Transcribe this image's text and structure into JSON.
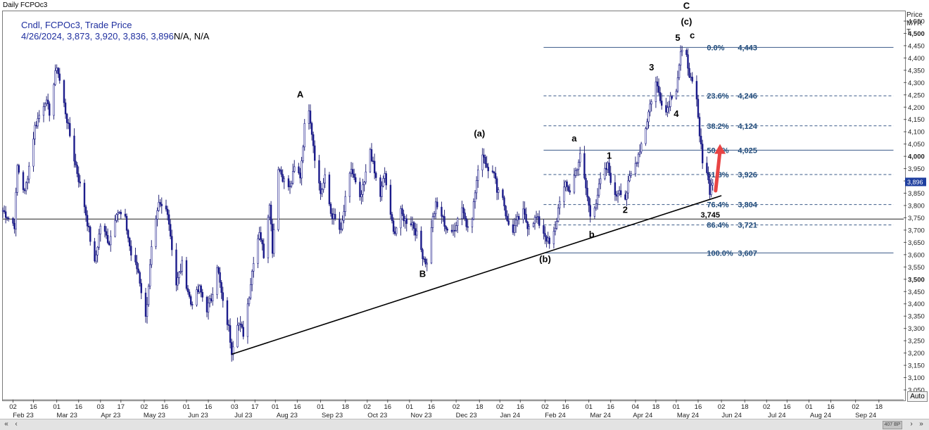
{
  "window": {
    "title": "Daily FCPOc3"
  },
  "info": {
    "line1": "Cndl, FCPOc3, Trade Price",
    "line2": "4/26/2024, 3,873, 3,920, 3,836, 3,896",
    "line2_suffix": "N/A, N/A"
  },
  "axis_header": {
    "line1": "Price",
    "line2": "MYR",
    "line3": "T"
  },
  "auto_label": "Auto",
  "scroll": {
    "left": "«",
    "prev": "‹",
    "next": "›",
    "right": "»",
    "thumb": "407 BP"
  },
  "chart_data": {
    "type": "candlestick",
    "symbol": "FCPOc3",
    "currency": "MYR",
    "ylim": [
      3010,
      4590
    ],
    "y_ticks": [
      3050,
      3100,
      3150,
      3200,
      3250,
      3300,
      3350,
      3400,
      3450,
      3500,
      3550,
      3600,
      3650,
      3700,
      3750,
      3800,
      3850,
      3900,
      3950,
      4000,
      4050,
      4100,
      4150,
      4200,
      4250,
      4300,
      4350,
      4400,
      4450,
      4500,
      4550
    ],
    "y_tick_labels": [
      "3,050",
      "3,100",
      "3,150",
      "3,200",
      "3,250",
      "3,300",
      "3,350",
      "3,400",
      "3,450",
      "3,500",
      "3,550",
      "3,600",
      "3,650",
      "3,700",
      "3,750",
      "3,800",
      "3,850",
      "3,900",
      "3,950",
      "4,000",
      "4,050",
      "4,100",
      "4,150",
      "4,200",
      "4,250",
      "4,300",
      "4,350",
      "4,400",
      "4,450",
      "4,500",
      "4,550"
    ],
    "y_bold": [
      "4,500",
      "4,000",
      "3,500"
    ],
    "current_price_label": "3,896",
    "current_price": 3896,
    "x_day_ticks": [
      {
        "d": "2023-01-02",
        "label": "02"
      },
      {
        "d": "2023-01-16",
        "label": "16"
      },
      {
        "d": "2023-02-01",
        "label": "01"
      },
      {
        "d": "2023-02-16",
        "label": "16"
      },
      {
        "d": "2023-03-03",
        "label": "03"
      },
      {
        "d": "2023-03-17",
        "label": "17"
      },
      {
        "d": "2023-04-02",
        "label": "02"
      },
      {
        "d": "2023-04-16",
        "label": "16"
      },
      {
        "d": "2023-05-01",
        "label": "01"
      },
      {
        "d": "2023-05-16",
        "label": "16"
      },
      {
        "d": "2023-06-03",
        "label": "03"
      },
      {
        "d": "2023-06-17",
        "label": "17"
      },
      {
        "d": "2023-07-01",
        "label": "01"
      },
      {
        "d": "2023-07-16",
        "label": "16"
      },
      {
        "d": "2023-08-01",
        "label": "01"
      },
      {
        "d": "2023-08-18",
        "label": "18"
      },
      {
        "d": "2023-09-02",
        "label": "02"
      },
      {
        "d": "2023-09-16",
        "label": "16"
      },
      {
        "d": "2023-10-01",
        "label": "01"
      },
      {
        "d": "2023-10-16",
        "label": "16"
      },
      {
        "d": "2023-11-02",
        "label": "02"
      },
      {
        "d": "2023-11-18",
        "label": "18"
      },
      {
        "d": "2023-12-02",
        "label": "02"
      },
      {
        "d": "2023-12-16",
        "label": "16"
      },
      {
        "d": "2024-01-02",
        "label": "02"
      },
      {
        "d": "2024-01-16",
        "label": "16"
      },
      {
        "d": "2024-02-01",
        "label": "01"
      },
      {
        "d": "2024-02-16",
        "label": "16"
      },
      {
        "d": "2024-03-04",
        "label": "04"
      },
      {
        "d": "2024-03-18",
        "label": "18"
      },
      {
        "d": "2024-04-01",
        "label": "01"
      },
      {
        "d": "2024-04-16",
        "label": "16"
      },
      {
        "d": "2024-05-02",
        "label": "02"
      },
      {
        "d": "2024-05-18",
        "label": "18"
      },
      {
        "d": "2024-06-02",
        "label": "02"
      },
      {
        "d": "2024-06-16",
        "label": "16"
      },
      {
        "d": "2024-07-01",
        "label": "01"
      },
      {
        "d": "2024-07-16",
        "label": "16"
      },
      {
        "d": "2024-08-02",
        "label": "02"
      },
      {
        "d": "2024-08-18",
        "label": "18"
      }
    ],
    "x_month_labels": [
      {
        "d": "2023-01-09",
        "label": "Feb 23"
      },
      {
        "d": "2023-02-08",
        "label": "Mar 23"
      },
      {
        "d": "2023-03-10",
        "label": "Apr 23"
      },
      {
        "d": "2023-04-09",
        "label": "May 23"
      },
      {
        "d": "2023-05-09",
        "label": "Jun 23"
      },
      {
        "d": "2023-06-09",
        "label": "Jul 23"
      },
      {
        "d": "2023-07-09",
        "label": "Aug 23"
      },
      {
        "d": "2023-08-09",
        "label": "Sep 23"
      },
      {
        "d": "2023-09-09",
        "label": "Oct 23"
      },
      {
        "d": "2023-10-09",
        "label": "Nov 23"
      },
      {
        "d": "2023-11-09",
        "label": "Dec 23"
      },
      {
        "d": "2023-12-09",
        "label": "Jan 24"
      },
      {
        "d": "2024-01-09",
        "label": "Feb 24"
      },
      {
        "d": "2024-02-09",
        "label": "Mar 24"
      },
      {
        "d": "2024-03-09",
        "label": "Apr 24"
      },
      {
        "d": "2024-04-09",
        "label": "May 24"
      },
      {
        "d": "2024-05-09",
        "label": "Jun 24"
      },
      {
        "d": "2024-06-09",
        "label": "Jul 24"
      },
      {
        "d": "2024-07-09",
        "label": "Aug 24"
      },
      {
        "d": "2024-08-09",
        "label": "Sep 24"
      }
    ],
    "price_path": [
      [
        "2022-12-26",
        3780
      ],
      [
        "2023-01-03",
        3720
      ],
      [
        "2023-01-05",
        3960
      ],
      [
        "2023-01-10",
        3850
      ],
      [
        "2023-01-13",
        3960
      ],
      [
        "2023-01-17",
        4120
      ],
      [
        "2023-01-24",
        4230
      ],
      [
        "2023-01-27",
        4180
      ],
      [
        "2023-02-01",
        4370
      ],
      [
        "2023-02-07",
        4180
      ],
      [
        "2023-02-13",
        3990
      ],
      [
        "2023-02-20",
        3800
      ],
      [
        "2023-02-27",
        3560
      ],
      [
        "2023-03-03",
        3720
      ],
      [
        "2023-03-09",
        3650
      ],
      [
        "2023-03-14",
        3780
      ],
      [
        "2023-03-20",
        3740
      ],
      [
        "2023-03-24",
        3600
      ],
      [
        "2023-03-29",
        3530
      ],
      [
        "2023-04-03",
        3340
      ],
      [
        "2023-04-07",
        3620
      ],
      [
        "2023-04-12",
        3800
      ],
      [
        "2023-04-18",
        3780
      ],
      [
        "2023-04-24",
        3480
      ],
      [
        "2023-04-28",
        3560
      ],
      [
        "2023-05-04",
        3400
      ],
      [
        "2023-05-10",
        3460
      ],
      [
        "2023-05-15",
        3380
      ],
      [
        "2023-05-18",
        3420
      ],
      [
        "2023-05-22",
        3560
      ],
      [
        "2023-05-26",
        3400
      ],
      [
        "2023-05-30",
        3300
      ],
      [
        "2023-06-01",
        3210
      ],
      [
        "2023-06-05",
        3330
      ],
      [
        "2023-06-09",
        3280
      ],
      [
        "2023-06-13",
        3440
      ],
      [
        "2023-06-16",
        3580
      ],
      [
        "2023-06-20",
        3700
      ],
      [
        "2023-06-23",
        3600
      ],
      [
        "2023-06-27",
        3820
      ],
      [
        "2023-06-29",
        3620
      ],
      [
        "2023-07-03",
        3960
      ],
      [
        "2023-07-07",
        3900
      ],
      [
        "2023-07-11",
        3870
      ],
      [
        "2023-07-14",
        3950
      ],
      [
        "2023-07-18",
        3920
      ],
      [
        "2023-07-21",
        4120
      ],
      [
        "2023-07-24",
        4200
      ],
      [
        "2023-07-28",
        4000
      ],
      [
        "2023-08-01",
        3850
      ],
      [
        "2023-08-04",
        3910
      ],
      [
        "2023-08-08",
        3770
      ],
      [
        "2023-08-11",
        3740
      ],
      [
        "2023-08-15",
        3690
      ],
      [
        "2023-08-18",
        3820
      ],
      [
        "2023-08-22",
        3950
      ],
      [
        "2023-08-28",
        3820
      ],
      [
        "2023-08-31",
        3890
      ],
      [
        "2023-09-04",
        4030
      ],
      [
        "2023-09-07",
        3930
      ],
      [
        "2023-09-11",
        3840
      ],
      [
        "2023-09-14",
        3930
      ],
      [
        "2023-09-18",
        3750
      ],
      [
        "2023-09-21",
        3690
      ],
      [
        "2023-09-25",
        3770
      ],
      [
        "2023-09-28",
        3740
      ],
      [
        "2023-10-03",
        3730
      ],
      [
        "2023-10-06",
        3680
      ],
      [
        "2023-10-10",
        3600
      ],
      [
        "2023-10-13",
        3560
      ],
      [
        "2023-10-16",
        3720
      ],
      [
        "2023-10-19",
        3800
      ],
      [
        "2023-10-23",
        3760
      ],
      [
        "2023-10-26",
        3710
      ],
      [
        "2023-10-30",
        3680
      ],
      [
        "2023-11-02",
        3730
      ],
      [
        "2023-11-06",
        3800
      ],
      [
        "2023-11-09",
        3720
      ],
      [
        "2023-11-13",
        3760
      ],
      [
        "2023-11-16",
        3900
      ],
      [
        "2023-11-20",
        4020
      ],
      [
        "2023-11-23",
        3960
      ],
      [
        "2023-11-27",
        3950
      ],
      [
        "2023-11-30",
        3870
      ],
      [
        "2023-12-04",
        3840
      ],
      [
        "2023-12-07",
        3730
      ],
      [
        "2023-12-11",
        3700
      ],
      [
        "2023-12-14",
        3740
      ],
      [
        "2023-12-18",
        3770
      ],
      [
        "2023-12-21",
        3720
      ],
      [
        "2023-12-27",
        3750
      ],
      [
        "2024-01-02",
        3680
      ],
      [
        "2024-01-05",
        3640
      ],
      [
        "2024-01-09",
        3700
      ],
      [
        "2024-01-12",
        3830
      ],
      [
        "2024-01-16",
        3880
      ],
      [
        "2024-01-19",
        3860
      ],
      [
        "2024-01-23",
        3940
      ],
      [
        "2024-01-26",
        4000
      ],
      [
        "2024-01-30",
        3870
      ],
      [
        "2024-02-02",
        3760
      ],
      [
        "2024-02-06",
        3820
      ],
      [
        "2024-02-09",
        3900
      ],
      [
        "2024-02-14",
        3960
      ],
      [
        "2024-02-19",
        3830
      ],
      [
        "2024-02-22",
        3870
      ],
      [
        "2024-02-26",
        3830
      ],
      [
        "2024-02-29",
        3910
      ],
      [
        "2024-03-04",
        3970
      ],
      [
        "2024-03-07",
        4030
      ],
      [
        "2024-03-11",
        4120
      ],
      [
        "2024-03-14",
        4210
      ],
      [
        "2024-03-18",
        4300
      ],
      [
        "2024-03-21",
        4240
      ],
      [
        "2024-03-25",
        4180
      ],
      [
        "2024-03-28",
        4240
      ],
      [
        "2024-04-01",
        4280
      ],
      [
        "2024-04-04",
        4420
      ],
      [
        "2024-04-08",
        4400
      ],
      [
        "2024-04-11",
        4310
      ],
      [
        "2024-04-15",
        4220
      ],
      [
        "2024-04-17",
        4080
      ],
      [
        "2024-04-19",
        3990
      ],
      [
        "2024-04-22",
        3940
      ],
      [
        "2024-04-24",
        3860
      ],
      [
        "2024-04-26",
        3896
      ]
    ],
    "fib_levels": [
      {
        "pct": "0.0%",
        "value": 4443,
        "label": "4,443",
        "solid": true
      },
      {
        "pct": "23.6%",
        "value": 4246,
        "label": "4,246",
        "solid": false
      },
      {
        "pct": "38.2%",
        "value": 4124,
        "label": "4,124",
        "solid": false
      },
      {
        "pct": "50.0%",
        "value": 4025,
        "label": "4,025",
        "solid": true
      },
      {
        "pct": "61.8%",
        "value": 3926,
        "label": "3,926",
        "solid": false
      },
      {
        "pct": "76.4%",
        "value": 3804,
        "label": "3,804",
        "solid": false
      },
      {
        "pct": "86.4%",
        "value": 3721,
        "label": "3,721",
        "solid": false
      },
      {
        "pct": "100.0%",
        "value": 3607,
        "label": "3,607",
        "solid": true
      }
    ],
    "fib_start_date": "2024-01-01",
    "fib_end_date": "2024-08-28",
    "horizontal_line": {
      "value": 3745,
      "label": "3,745"
    },
    "trendline": [
      [
        "2023-06-01",
        3195
      ],
      [
        "2024-05-02",
        3840
      ]
    ],
    "arrow": {
      "from": [
        "2024-04-28",
        3860
      ],
      "to": [
        "2024-05-01",
        4050
      ]
    },
    "wave_labels": [
      {
        "text": "A",
        "d": "2023-07-18",
        "v": 4240
      },
      {
        "text": "B",
        "d": "2023-10-10",
        "v": 3510
      },
      {
        "text": "(a)",
        "d": "2023-11-18",
        "v": 4080
      },
      {
        "text": "(b)",
        "d": "2024-01-02",
        "v": 3570
      },
      {
        "text": "a",
        "d": "2024-01-22",
        "v": 4060
      },
      {
        "text": "b",
        "d": "2024-02-03",
        "v": 3670
      },
      {
        "text": "1",
        "d": "2024-02-15",
        "v": 3990
      },
      {
        "text": "2",
        "d": "2024-02-26",
        "v": 3770
      },
      {
        "text": "3",
        "d": "2024-03-15",
        "v": 4350
      },
      {
        "text": "4",
        "d": "2024-04-01",
        "v": 4160
      },
      {
        "text": "5",
        "d": "2024-04-02",
        "v": 4470
      },
      {
        "text": "c",
        "d": "2024-04-12",
        "v": 4480
      },
      {
        "text": "(c)",
        "d": "2024-04-08",
        "v": 4535
      },
      {
        "text": "C",
        "d": "2024-04-08",
        "v": 4600
      }
    ]
  }
}
